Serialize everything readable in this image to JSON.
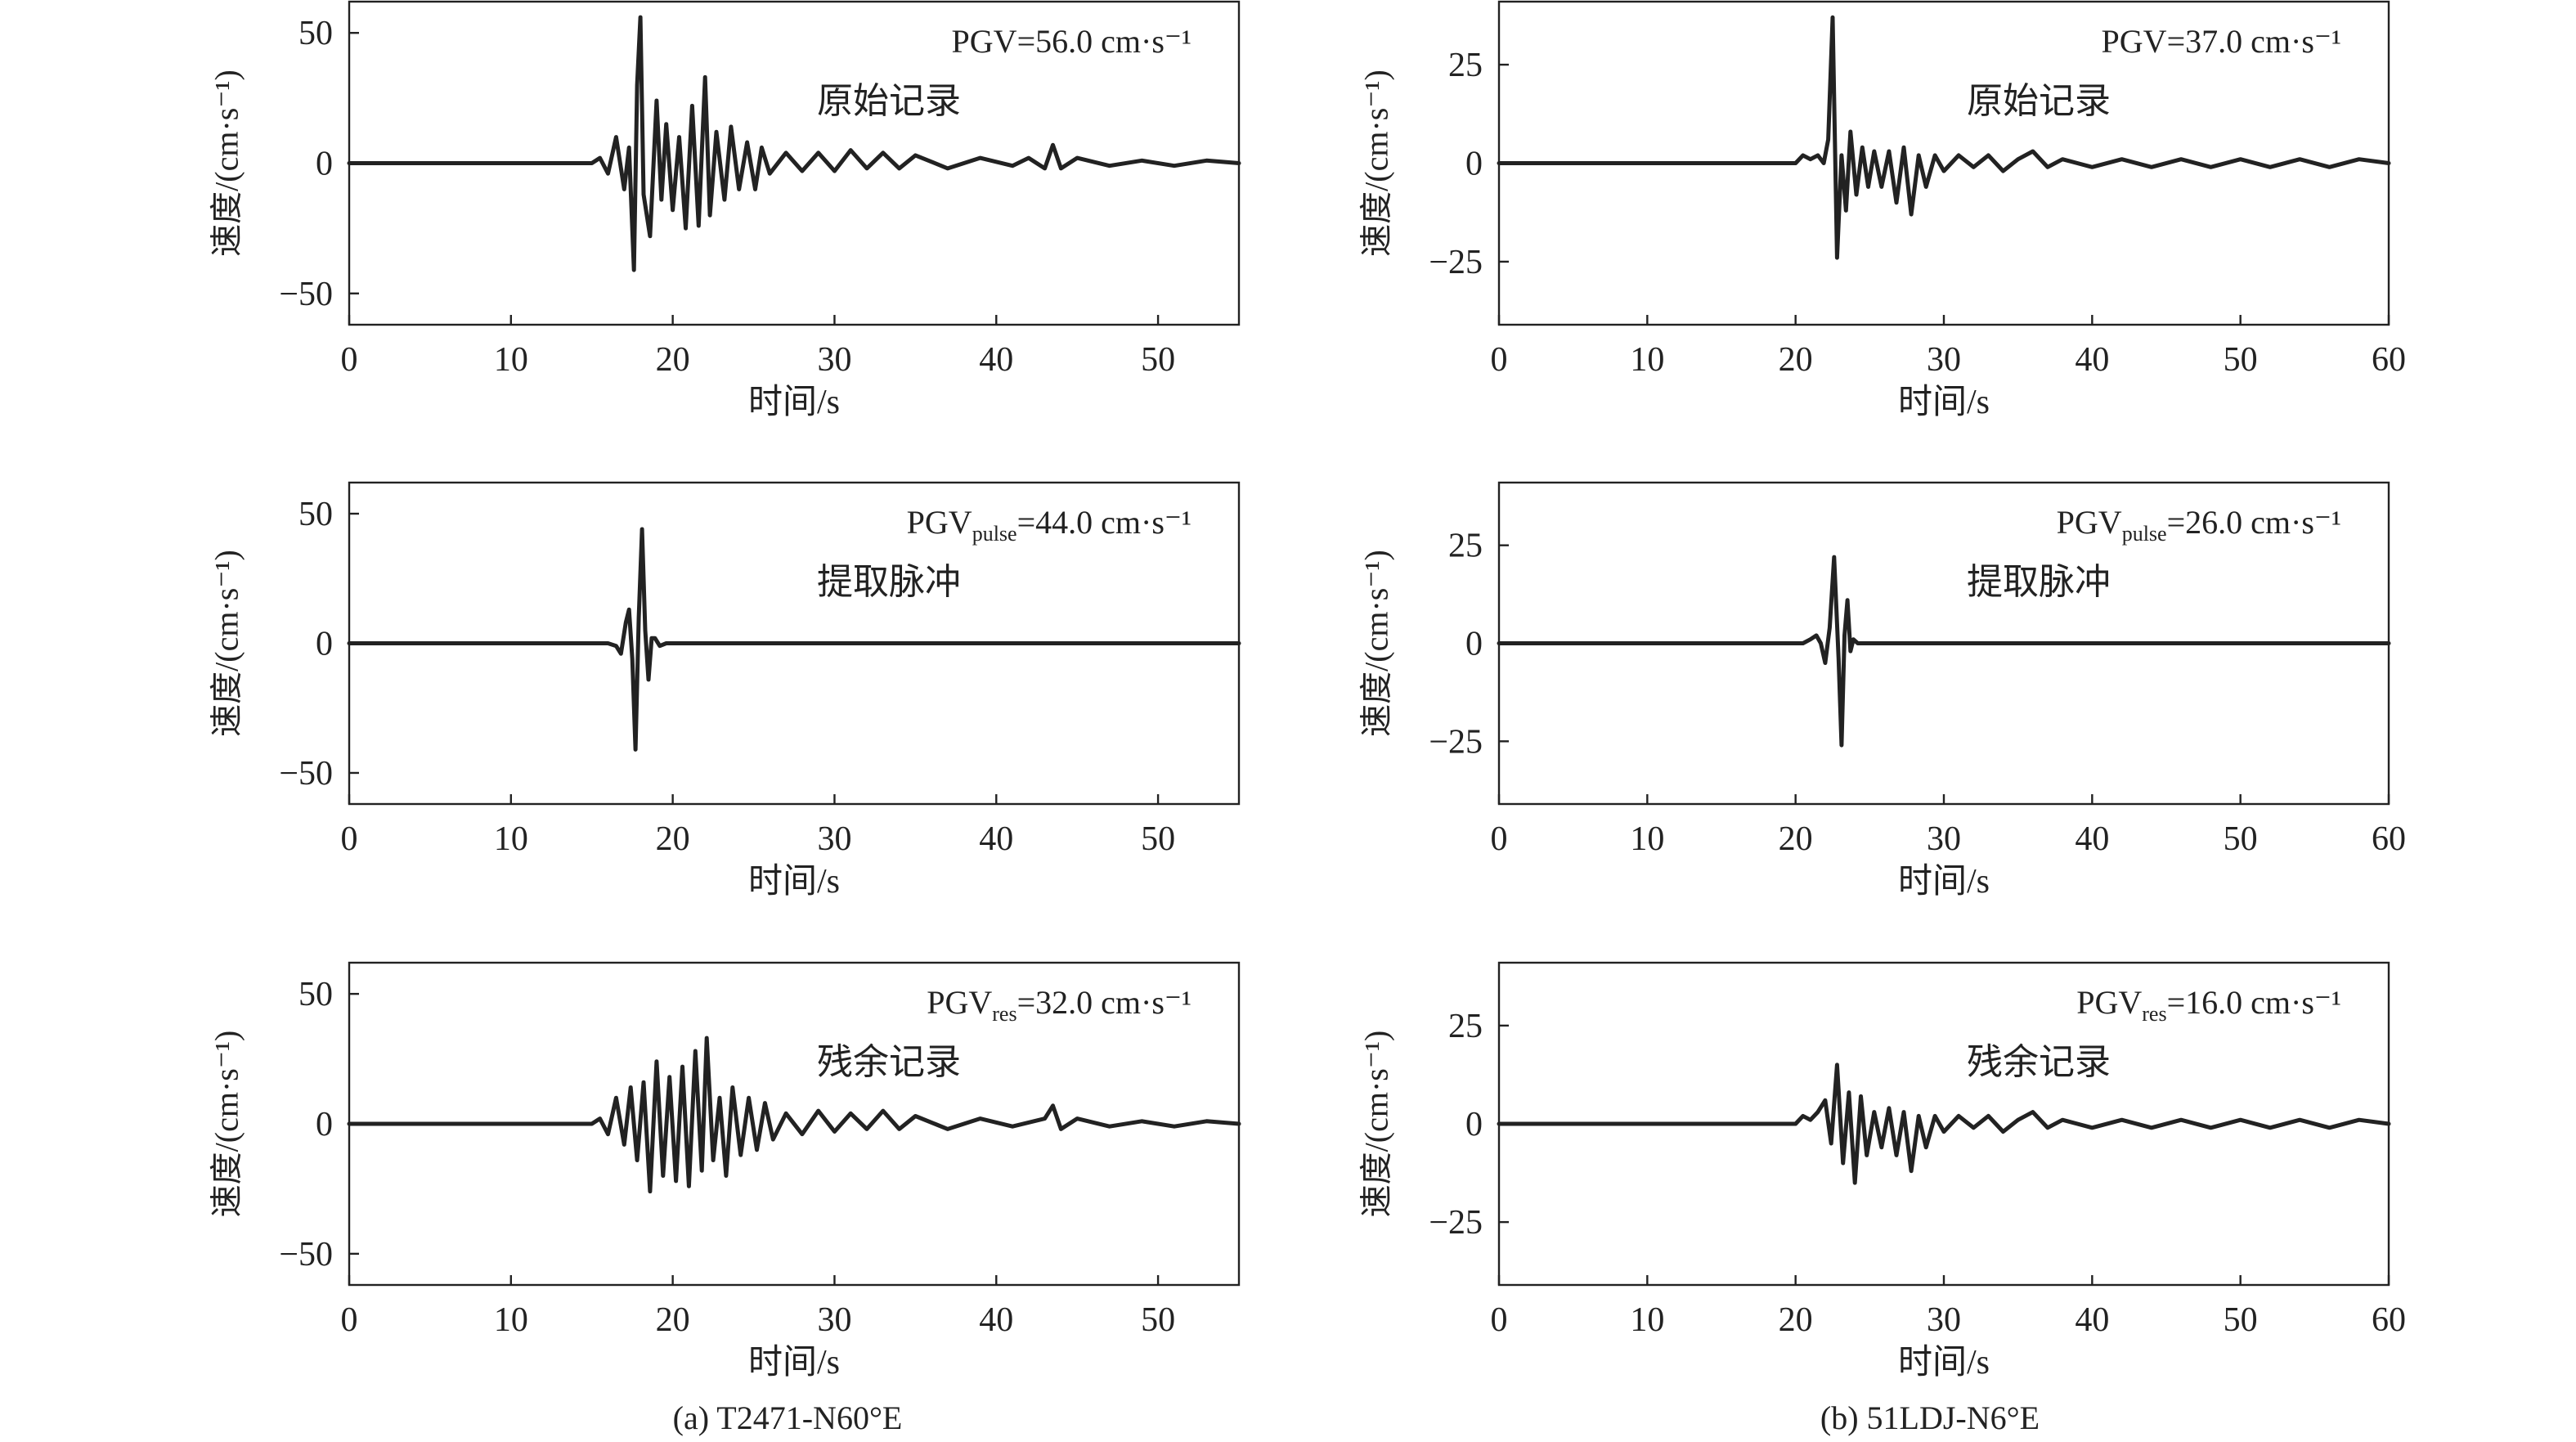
{
  "chart_data": [
    {
      "caption": "(a) T2471-N60°E",
      "panels": [
        {
          "type": "line",
          "xlabel": "时间/s",
          "ylabel": "速度/(cm·s⁻¹)",
          "xlim": [
            0,
            55
          ],
          "ylim": [
            -62,
            62
          ],
          "xticks": [
            0,
            10,
            20,
            30,
            40,
            50
          ],
          "yticks": [
            -50,
            0,
            50
          ],
          "pgv": {
            "main": "PGV",
            "sub": "",
            "rest": "=56.0 cm·s⁻¹"
          },
          "label": "原始记录",
          "series": [
            {
              "x": [
                0,
                15,
                15.5,
                16,
                16.5,
                17,
                17.3,
                17.6,
                17.8,
                18.0,
                18.2,
                18.6,
                19.0,
                19.3,
                19.6,
                20.0,
                20.4,
                20.8,
                21.2,
                21.6,
                22.0,
                22.3,
                22.7,
                23.2,
                23.6,
                24.1,
                24.6,
                25.1,
                25.5,
                26,
                27,
                28,
                29,
                30,
                31,
                32,
                33,
                34,
                35,
                37,
                39,
                41,
                42,
                43,
                43.5,
                44,
                45,
                47,
                49,
                51,
                53,
                55
              ],
              "y": [
                0,
                0,
                2,
                -4,
                10,
                -10,
                6,
                -41,
                30,
                56,
                -12,
                -28,
                24,
                -14,
                15,
                -18,
                10,
                -25,
                22,
                -24,
                33,
                -20,
                12,
                -14,
                14,
                -10,
                8,
                -10,
                6,
                -4,
                4,
                -3,
                4,
                -3,
                5,
                -2,
                4,
                -2,
                3,
                -2,
                2,
                -1,
                2,
                -2,
                7,
                -2,
                2,
                -1,
                1,
                -1,
                1,
                0
              ]
            }
          ]
        },
        {
          "type": "line",
          "xlabel": "时间/s",
          "ylabel": "速度/(cm·s⁻¹)",
          "xlim": [
            0,
            55
          ],
          "ylim": [
            -62,
            62
          ],
          "xticks": [
            0,
            10,
            20,
            30,
            40,
            50
          ],
          "yticks": [
            -50,
            0,
            50
          ],
          "pgv": {
            "main": "PGV",
            "sub": "pulse",
            "rest": "=44.0 cm·s⁻¹"
          },
          "label": "提取脉冲",
          "series": [
            {
              "x": [
                0,
                16,
                16.5,
                16.8,
                17.1,
                17.3,
                17.5,
                17.7,
                17.9,
                18.1,
                18.3,
                18.5,
                18.7,
                18.9,
                19.2,
                19.6,
                20,
                55
              ],
              "y": [
                0,
                0,
                -1,
                -4,
                8,
                13,
                -6,
                -41,
                10,
                44,
                5,
                -14,
                2,
                2,
                -1,
                0,
                0,
                0
              ]
            }
          ]
        },
        {
          "type": "line",
          "xlabel": "时间/s",
          "ylabel": "速度/(cm·s⁻¹)",
          "xlim": [
            0,
            55
          ],
          "ylim": [
            -62,
            62
          ],
          "xticks": [
            0,
            10,
            20,
            30,
            40,
            50
          ],
          "yticks": [
            -50,
            0,
            50
          ],
          "pgv": {
            "main": "PGV",
            "sub": "res",
            "rest": "=32.0 cm·s⁻¹"
          },
          "label": "残余记录",
          "series": [
            {
              "x": [
                0,
                15,
                15.5,
                16,
                16.5,
                17,
                17.4,
                17.8,
                18.2,
                18.6,
                19.0,
                19.4,
                19.8,
                20.2,
                20.6,
                21.0,
                21.4,
                21.8,
                22.1,
                22.5,
                22.9,
                23.3,
                23.7,
                24.2,
                24.7,
                25.2,
                25.7,
                26.2,
                27,
                28,
                29,
                30,
                31,
                32,
                33,
                34,
                35,
                37,
                39,
                41,
                43,
                43.5,
                44,
                45,
                47,
                49,
                51,
                53,
                55
              ],
              "y": [
                0,
                0,
                2,
                -4,
                10,
                -8,
                14,
                -14,
                16,
                -26,
                24,
                -20,
                18,
                -22,
                22,
                -24,
                28,
                -18,
                33,
                -14,
                10,
                -20,
                14,
                -12,
                10,
                -10,
                8,
                -6,
                4,
                -4,
                5,
                -3,
                4,
                -2,
                5,
                -2,
                3,
                -2,
                2,
                -1,
                2,
                7,
                -2,
                2,
                -1,
                1,
                -1,
                1,
                0
              ]
            }
          ]
        }
      ]
    },
    {
      "caption": "(b) 51LDJ-N6°E",
      "panels": [
        {
          "type": "line",
          "xlabel": "时间/s",
          "ylabel": "速度/(cm·s⁻¹)",
          "xlim": [
            0,
            60
          ],
          "ylim": [
            -41,
            41
          ],
          "xticks": [
            0,
            10,
            20,
            30,
            40,
            50,
            60
          ],
          "yticks": [
            -25,
            0,
            25
          ],
          "pgv": {
            "main": "PGV",
            "sub": "",
            "rest": "=37.0 cm·s⁻¹"
          },
          "label": "原始记录",
          "series": [
            {
              "x": [
                0,
                20,
                20.5,
                21,
                21.5,
                21.9,
                22.2,
                22.5,
                22.8,
                23.1,
                23.4,
                23.7,
                24.1,
                24.5,
                24.9,
                25.3,
                25.8,
                26.3,
                26.8,
                27.3,
                27.8,
                28.3,
                28.8,
                29.4,
                30,
                31,
                32,
                33,
                34,
                35,
                36,
                37,
                38,
                40,
                42,
                44,
                46,
                48,
                50,
                52,
                54,
                56,
                58,
                60
              ],
              "y": [
                0,
                0,
                2,
                1,
                2,
                0,
                6,
                37,
                -24,
                2,
                -12,
                8,
                -8,
                4,
                -6,
                3,
                -6,
                3,
                -10,
                4,
                -13,
                2,
                -6,
                2,
                -2,
                2,
                -1,
                2,
                -2,
                1,
                3,
                -1,
                1,
                -1,
                1,
                -1,
                1,
                -1,
                1,
                -1,
                1,
                -1,
                1,
                0
              ]
            }
          ]
        },
        {
          "type": "line",
          "xlabel": "时间/s",
          "ylabel": "速度/(cm·s⁻¹)",
          "xlim": [
            0,
            60
          ],
          "ylim": [
            -41,
            41
          ],
          "xticks": [
            0,
            10,
            20,
            30,
            40,
            50,
            60
          ],
          "yticks": [
            -25,
            0,
            25
          ],
          "pgv": {
            "main": "PGV",
            "sub": "pulse",
            "rest": "=26.0 cm·s⁻¹"
          },
          "label": "提取脉冲",
          "series": [
            {
              "x": [
                0,
                20.5,
                21,
                21.4,
                21.7,
                22.0,
                22.3,
                22.6,
                22.9,
                23.1,
                23.3,
                23.5,
                23.7,
                23.9,
                24.2,
                24.6,
                25,
                60
              ],
              "y": [
                0,
                0,
                1,
                2,
                0,
                -5,
                4,
                22,
                -4,
                -26,
                2,
                11,
                -2,
                1,
                0,
                0,
                0,
                0
              ]
            }
          ]
        },
        {
          "type": "line",
          "xlabel": "时间/s",
          "ylabel": "速度/(cm·s⁻¹)",
          "xlim": [
            0,
            60
          ],
          "ylim": [
            -41,
            41
          ],
          "xticks": [
            0,
            10,
            20,
            30,
            40,
            50,
            60
          ],
          "yticks": [
            -25,
            0,
            25
          ],
          "pgv": {
            "main": "PGV",
            "sub": "res",
            "rest": "=16.0 cm·s⁻¹"
          },
          "label": "残余记录",
          "series": [
            {
              "x": [
                0,
                20,
                20.5,
                21,
                21.5,
                22.0,
                22.4,
                22.8,
                23.2,
                23.6,
                24.0,
                24.4,
                24.8,
                25.3,
                25.8,
                26.3,
                26.8,
                27.3,
                27.8,
                28.3,
                28.8,
                29.4,
                30,
                31,
                32,
                33,
                34,
                35,
                36,
                37,
                38,
                40,
                42,
                44,
                46,
                48,
                50,
                52,
                54,
                56,
                58,
                60
              ],
              "y": [
                0,
                0,
                2,
                1,
                3,
                6,
                -5,
                15,
                -10,
                8,
                -15,
                7,
                -8,
                3,
                -6,
                4,
                -8,
                3,
                -12,
                2,
                -6,
                2,
                -2,
                2,
                -1,
                2,
                -2,
                1,
                3,
                -1,
                1,
                -1,
                1,
                -1,
                1,
                -1,
                1,
                -1,
                1,
                -1,
                1,
                0
              ]
            }
          ]
        }
      ]
    }
  ]
}
